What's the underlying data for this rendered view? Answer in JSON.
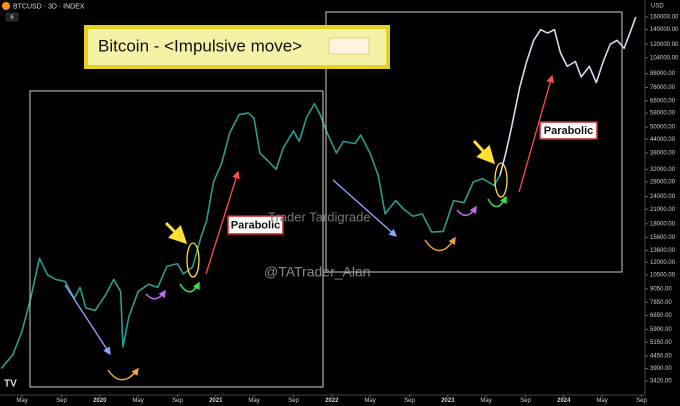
{
  "chart_data": {
    "type": "line",
    "header": "BTCUSD · 3D · INDEX",
    "interval_badge": "6",
    "currency": "USD",
    "log_y": true,
    "xlim": [
      2019.14,
      2024.7
    ],
    "ylim": [
      2950,
      191500
    ],
    "xticks": [
      {
        "value": 2019.33,
        "label": "May"
      },
      {
        "value": 2019.67,
        "label": "Sep"
      },
      2020,
      {
        "value": 2020.33,
        "label": "May"
      },
      {
        "value": 2020.67,
        "label": "Sep"
      },
      2021,
      {
        "value": 2021.33,
        "label": "May"
      },
      {
        "value": 2021.67,
        "label": "Sep"
      },
      2022,
      {
        "value": 2022.33,
        "label": "May"
      },
      {
        "value": 2022.67,
        "label": "Sep"
      },
      2023,
      {
        "value": 2023.33,
        "label": "May"
      },
      {
        "value": 2023.67,
        "label": "Sep"
      },
      2024,
      {
        "value": 2024.33,
        "label": "May"
      },
      {
        "value": 2024.67,
        "label": "Sep"
      }
    ],
    "yticks": [
      {
        "value": 160000,
        "label": "160000.00"
      },
      {
        "value": 140000,
        "label": "140000.00"
      },
      {
        "value": 120000,
        "label": "120000.00"
      },
      {
        "value": 104000,
        "label": "104000.00"
      },
      {
        "value": 88000,
        "label": "88000.00"
      },
      {
        "value": 76000,
        "label": "76000.00"
      },
      {
        "value": 66000,
        "label": "66000.00"
      },
      {
        "value": 58000,
        "label": "58000.00"
      },
      {
        "value": 50000,
        "label": "50000.00"
      },
      {
        "value": 44000,
        "label": "44000.00"
      },
      {
        "value": 38000,
        "label": "38000.00"
      },
      {
        "value": 32000,
        "label": "32000.00"
      },
      {
        "value": 28000,
        "label": "28000.00"
      },
      {
        "value": 24000,
        "label": "24000.00"
      },
      {
        "value": 21000,
        "label": "21000.00"
      },
      {
        "value": 18000,
        "label": "18000.00"
      },
      {
        "value": 15600,
        "label": "15600.00"
      },
      {
        "value": 13600,
        "label": "13600.00"
      },
      {
        "value": 12000,
        "label": "12000.00"
      },
      {
        "value": 10500,
        "label": "10500.00"
      },
      {
        "value": 9050,
        "label": "9050.00"
      },
      {
        "value": 7850,
        "label": "7850.00"
      },
      {
        "value": 6850,
        "label": "6850.00"
      },
      {
        "value": 5900,
        "label": "5900.00"
      },
      {
        "value": 5150,
        "label": "5150.00"
      },
      {
        "value": 4450,
        "label": "4450.00"
      },
      {
        "value": 3900,
        "label": "3900.00"
      },
      {
        "value": 3420,
        "label": "3420.00"
      }
    ],
    "series": [
      {
        "color": "#2a9d8f",
        "x": [
          2019.15,
          2019.25,
          2019.33,
          2019.4,
          2019.48,
          2019.55,
          2019.62,
          2019.7,
          2019.78,
          2019.83,
          2019.88,
          2019.96,
          2020.05,
          2020.12,
          2020.18,
          2020.2,
          2020.25,
          2020.33,
          2020.42,
          2020.5,
          2020.58,
          2020.67,
          2020.72,
          2020.8,
          2020.87,
          2020.92,
          2020.98,
          2021.05,
          2021.12,
          2021.2,
          2021.28,
          2021.33,
          2021.38,
          2021.45,
          2021.52,
          2021.58,
          2021.67,
          2021.72,
          2021.78,
          2021.85,
          2021.9,
          2021.96,
          2022.04,
          2022.1,
          2022.2,
          2022.25,
          2022.33,
          2022.4,
          2022.46,
          2022.55,
          2022.62,
          2022.7,
          2022.78,
          2022.86,
          2022.96,
          2023.05,
          2023.14,
          2023.22,
          2023.3,
          2023.4,
          2023.45
        ],
        "values": [
          3900,
          4500,
          5800,
          8000,
          12500,
          10500,
          10000,
          9800,
          8200,
          9200,
          7400,
          7200,
          8500,
          10000,
          8800,
          4900,
          6700,
          8800,
          9500,
          9200,
          11500,
          11800,
          10600,
          11400,
          15500,
          18500,
          28000,
          34000,
          47000,
          57000,
          58000,
          55000,
          38000,
          35000,
          32000,
          40000,
          48000,
          43000,
          55000,
          64000,
          57000,
          47000,
          38000,
          43000,
          42000,
          46000,
          38000,
          30000,
          20000,
          23000,
          21000,
          19500,
          20000,
          16500,
          16600,
          23000,
          22500,
          28000,
          29000,
          27000,
          30000
        ]
      },
      {
        "color": "#d6d6f2",
        "x": [
          2023.45,
          2023.5,
          2023.55,
          2023.62,
          2023.68,
          2023.74,
          2023.8,
          2023.86,
          2023.92,
          2023.97,
          2024.03,
          2024.1,
          2024.15,
          2024.22,
          2024.28,
          2024.34,
          2024.4,
          2024.46,
          2024.52,
          2024.57,
          2024.62
        ],
        "values": [
          30000,
          38000,
          50000,
          76000,
          100000,
          125000,
          140000,
          135000,
          140000,
          110000,
          95000,
          100000,
          85000,
          95000,
          80000,
          100000,
          120000,
          125000,
          115000,
          135000,
          160000
        ]
      }
    ],
    "annotations": {
      "title": "Bitcoin - <Impulsive move>",
      "parabolic": [
        "Parabolic",
        "Parabolic"
      ],
      "watermark": "Trader Tardigrade",
      "handle": "@TATrader_Alan"
    }
  }
}
